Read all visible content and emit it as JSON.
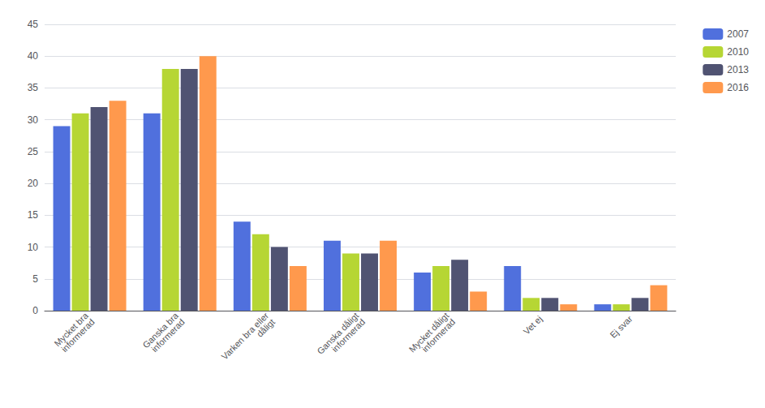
{
  "chart_data": {
    "type": "bar",
    "categories": [
      "Mycket bra\ninformerad",
      "Ganska bra\ninformerad",
      "Varken bra eller\ndåligt",
      "Ganska dåligt\ninformerad",
      "Mycket dåligt\ninformerad",
      "Vet ej",
      "Ej svar"
    ],
    "series": [
      {
        "name": "2007",
        "values": [
          29,
          31,
          14,
          11,
          6,
          7,
          1
        ]
      },
      {
        "name": "2010",
        "values": [
          31,
          38,
          12,
          9,
          7,
          2,
          1
        ]
      },
      {
        "name": "2013",
        "values": [
          32,
          38,
          10,
          9,
          8,
          2,
          2
        ]
      },
      {
        "name": "2016",
        "values": [
          33,
          40,
          7,
          11,
          3,
          1,
          4
        ]
      }
    ],
    "ylim": [
      0,
      45
    ],
    "yticks": [
      0,
      5,
      10,
      15,
      20,
      25,
      30,
      35,
      40,
      45
    ],
    "grid": true,
    "legend": "right"
  }
}
